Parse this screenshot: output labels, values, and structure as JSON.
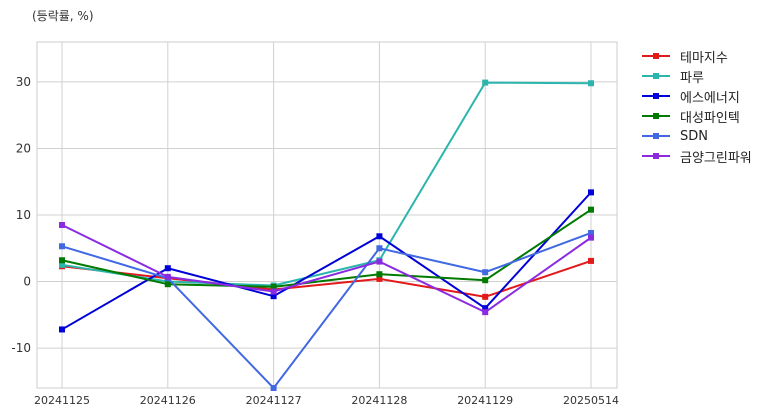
{
  "chart_data": {
    "type": "line",
    "ylabel": "(등락률, %)",
    "categories": [
      "20241125",
      "20241126",
      "20241127",
      "20241128",
      "20241129",
      "20250514"
    ],
    "ylim": [
      -16,
      36
    ],
    "yticks": [
      -10,
      0,
      10,
      20,
      30
    ],
    "grid": true,
    "legend_position": "outside-right",
    "series": [
      {
        "name": "테마지수",
        "color": "#e31a1c",
        "values": [
          2.3,
          0.5,
          -1.2,
          0.4,
          -2.3,
          3.1
        ]
      },
      {
        "name": "파루",
        "color": "#2bb5ad",
        "values": [
          2.5,
          0.0,
          -0.6,
          3.2,
          29.9,
          29.8
        ]
      },
      {
        "name": "에스에너지",
        "color": "#0000d9",
        "values": [
          -7.2,
          2.0,
          -2.2,
          6.8,
          -4.0,
          13.4
        ]
      },
      {
        "name": "대성파인텍",
        "color": "#007a00",
        "values": [
          3.2,
          -0.4,
          -0.8,
          1.1,
          0.2,
          10.8
        ]
      },
      {
        "name": "SDN",
        "color": "#4169e1",
        "values": [
          5.3,
          0.5,
          -16.0,
          5.0,
          1.4,
          7.3
        ]
      },
      {
        "name": "금양그린파워",
        "color": "#8a2be2",
        "values": [
          8.5,
          0.7,
          -1.5,
          3.0,
          -4.6,
          6.6
        ]
      }
    ]
  }
}
